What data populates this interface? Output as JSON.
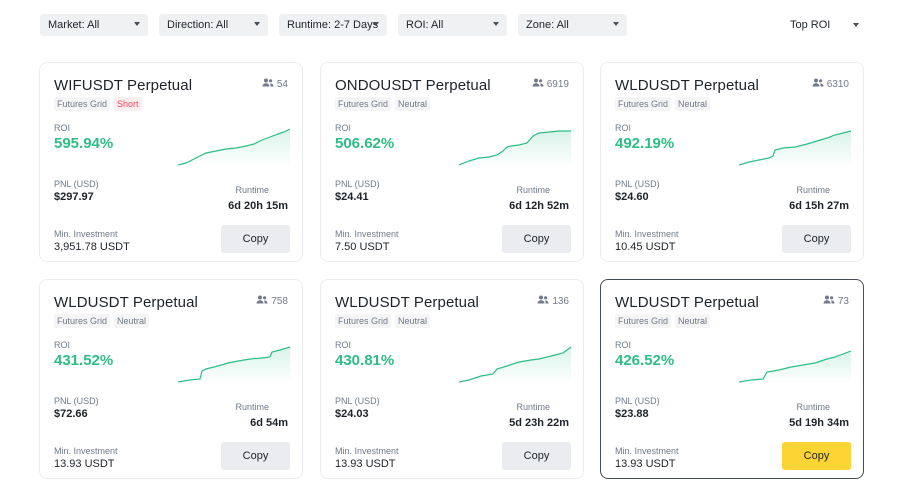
{
  "filters": [
    {
      "label": "Market: All"
    },
    {
      "label": "Direction: All"
    },
    {
      "label": "Runtime: 2-7 Days"
    },
    {
      "label": "ROI: All"
    },
    {
      "label": "Zone: All"
    }
  ],
  "sort": {
    "label": "Top ROI"
  },
  "labels": {
    "roi": "ROI",
    "pnl": "PNL (USD)",
    "runtime": "Runtime",
    "min_investment": "Min. Investment",
    "copy": "Copy"
  },
  "colors": {
    "roi_positive": "#2ebd85",
    "primary_button": "#fcd535",
    "short_tag": "#f6465d"
  },
  "cards": [
    {
      "title": "WIFUSDT Perpetual",
      "followers": "54",
      "tags": [
        "Futures Grid",
        "Short"
      ],
      "roi": "595.94%",
      "pnl": "$297.97",
      "runtime": "6d 20h 15m",
      "min_investment": "3,951.78 USDT",
      "selected": false
    },
    {
      "title": "ONDOUSDT Perpetual",
      "followers": "6919",
      "tags": [
        "Futures Grid",
        "Neutral"
      ],
      "roi": "506.62%",
      "pnl": "$24.41",
      "runtime": "6d 12h 52m",
      "min_investment": "7.50 USDT",
      "selected": false
    },
    {
      "title": "WLDUSDT Perpetual",
      "followers": "6310",
      "tags": [
        "Futures Grid",
        "Neutral"
      ],
      "roi": "492.19%",
      "pnl": "$24.60",
      "runtime": "6d 15h 27m",
      "min_investment": "10.45 USDT",
      "selected": false
    },
    {
      "title": "WLDUSDT Perpetual",
      "followers": "758",
      "tags": [
        "Futures Grid",
        "Neutral"
      ],
      "roi": "431.52%",
      "pnl": "$72.66",
      "runtime": "6d 54m",
      "min_investment": "13.93 USDT",
      "selected": false
    },
    {
      "title": "WLDUSDT Perpetual",
      "followers": "136",
      "tags": [
        "Futures Grid",
        "Neutral"
      ],
      "roi": "430.81%",
      "pnl": "$24.03",
      "runtime": "5d 23h 22m",
      "min_investment": "13.93 USDT",
      "selected": false
    },
    {
      "title": "WLDUSDT Perpetual",
      "followers": "73",
      "tags": [
        "Futures Grid",
        "Neutral"
      ],
      "roi": "426.52%",
      "pnl": "$23.88",
      "runtime": "5d 19h 34m",
      "min_investment": "13.93 USDT",
      "selected": true
    }
  ]
}
